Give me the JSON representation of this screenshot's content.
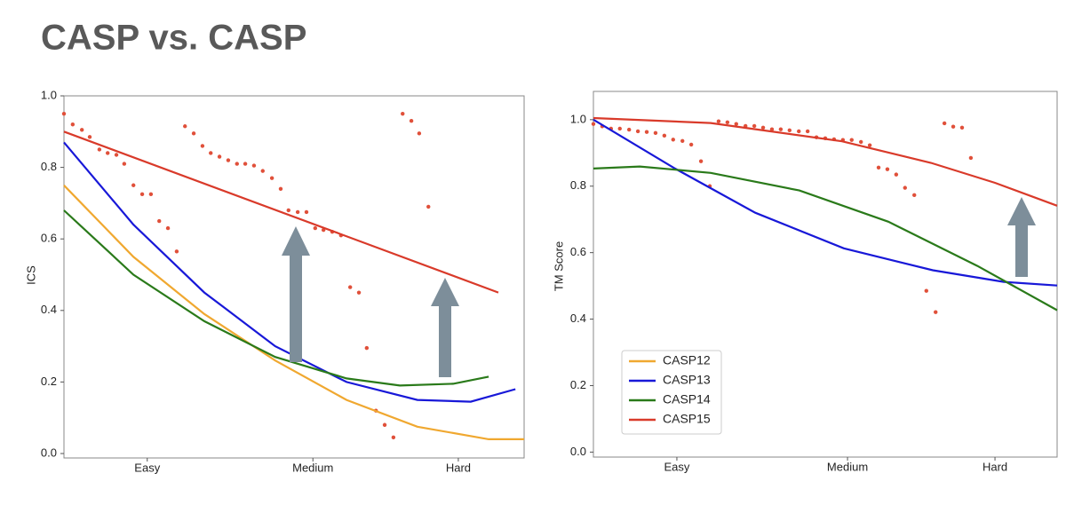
{
  "title": "CASP vs. CASP",
  "chart_data": [
    {
      "type": "line",
      "ylabel": "ICS",
      "xlim": [
        0,
        100
      ],
      "ylim": [
        0,
        1
      ],
      "xticks": [
        {
          "value": 18.1,
          "label": "Easy"
        },
        {
          "value": 54.1,
          "label": "Medium"
        },
        {
          "value": 85.7,
          "label": "Hard"
        }
      ],
      "yticks": [
        {
          "value": 0,
          "label": "0.0"
        },
        0.2,
        0.4,
        0.6,
        0.8,
        {
          "value": 1,
          "label": "1.0"
        }
      ],
      "series": [
        {
          "color": "#f0a830",
          "x": [
            0,
            15.1,
            30.5,
            45.9,
            61.4,
            76.8,
            92.3,
            100
          ],
          "values": [
            0.75,
            0.55,
            0.39,
            0.26,
            0.15,
            0.075,
            0.04,
            0.04
          ]
        },
        {
          "color": "#1818d8",
          "x": [
            0,
            15.1,
            30.5,
            45.9,
            61.4,
            76.8,
            88.4,
            98.1
          ],
          "values": [
            0.87,
            0.64,
            0.45,
            0.3,
            0.2,
            0.15,
            0.145,
            0.18
          ]
        },
        {
          "color": "#2a7a1a",
          "x": [
            0,
            15.1,
            30.5,
            45.9,
            61.4,
            73.0,
            84.6,
            92.3
          ],
          "values": [
            0.68,
            0.5,
            0.37,
            0.27,
            0.21,
            0.19,
            0.195,
            0.215
          ]
        },
        {
          "color": "#d93a2a",
          "x": [
            0,
            94.4
          ],
          "values": [
            0.9,
            0.45
          ]
        }
      ],
      "points": {
        "color": "#e0503a",
        "x": [
          0,
          1.9,
          3.9,
          5.6,
          7.7,
          9.5,
          11.4,
          13.1,
          15.1,
          17.0,
          18.9,
          20.7,
          22.6,
          24.5,
          26.3,
          28.2,
          30.1,
          31.9,
          33.8,
          35.7,
          37.6,
          39.4,
          41.3,
          43.2,
          45.2,
          47.1,
          48.8,
          50.8,
          52.7,
          54.6,
          56.4,
          58.3,
          60.2,
          62.2,
          64.1,
          65.8,
          67.8,
          69.7,
          71.6,
          73.6,
          75.5,
          77.2,
          79.2
        ],
        "values": [
          0.95,
          0.92,
          0.905,
          0.885,
          0.85,
          0.84,
          0.835,
          0.81,
          0.75,
          0.725,
          0.725,
          0.65,
          0.63,
          0.565,
          0.915,
          0.895,
          0.86,
          0.84,
          0.83,
          0.82,
          0.81,
          0.81,
          0.805,
          0.79,
          0.77,
          0.74,
          0.68,
          0.675,
          0.675,
          0.63,
          0.625,
          0.62,
          0.61,
          0.465,
          0.45,
          0.295,
          0.12,
          0.08,
          0.045,
          0.95,
          0.93,
          0.895,
          0.69
        ]
      }
    },
    {
      "type": "line",
      "ylabel": "TM Score",
      "xlim": [
        0,
        100
      ],
      "ylim": [
        -0.015,
        1.085
      ],
      "xticks": [
        {
          "value": 18.0,
          "label": "Easy"
        },
        {
          "value": 54.8,
          "label": "Medium"
        },
        {
          "value": 86.6,
          "label": "Hard"
        }
      ],
      "yticks": [
        {
          "value": 0,
          "label": "0.0"
        },
        0.2,
        0.4,
        0.6,
        0.8,
        {
          "value": 1,
          "label": "1.0"
        }
      ],
      "legend": "lower left",
      "series": [
        {
          "name": "CASP12",
          "color": "#f0a830",
          "x": [],
          "values": []
        },
        {
          "name": "CASP13",
          "color": "#1818d8",
          "x": [
            0,
            17.6,
            34.9,
            54.0,
            73.2,
            88.5,
            100
          ],
          "values": [
            1.0,
            0.853,
            0.72,
            0.613,
            0.547,
            0.512,
            0.501
          ]
        },
        {
          "name": "CASP14",
          "color": "#2a7a1a",
          "x": [
            0,
            10.0,
            25.3,
            44.4,
            63.6,
            82.8,
            100
          ],
          "values": [
            0.853,
            0.859,
            0.84,
            0.787,
            0.693,
            0.56,
            0.427
          ]
        },
        {
          "name": "CASP15",
          "color": "#d93a2a",
          "x": [
            0,
            25.3,
            53.6,
            72.8,
            86.6,
            100
          ],
          "values": [
            1.005,
            0.99,
            0.935,
            0.87,
            0.81,
            0.741
          ]
        }
      ],
      "points": {
        "color": "#e0503a",
        "x": [
          0,
          1.9,
          3.8,
          5.7,
          7.7,
          9.6,
          11.5,
          13.4,
          15.3,
          17.2,
          19.2,
          21.1,
          23.2,
          25.1,
          27.0,
          28.9,
          30.8,
          32.8,
          34.7,
          36.6,
          38.5,
          40.4,
          42.3,
          44.3,
          46.2,
          48.1,
          50.0,
          51.9,
          53.8,
          55.7,
          57.7,
          59.6,
          61.5,
          63.4,
          65.3,
          67.2,
          69.2,
          71.8,
          73.8,
          75.7,
          77.6,
          79.5,
          81.4
        ],
        "values": [
          0.987,
          0.98,
          0.973,
          0.973,
          0.97,
          0.965,
          0.963,
          0.96,
          0.952,
          0.94,
          0.936,
          0.925,
          0.875,
          0.8,
          0.995,
          0.992,
          0.987,
          0.981,
          0.981,
          0.976,
          0.971,
          0.971,
          0.968,
          0.965,
          0.965,
          0.947,
          0.944,
          0.941,
          0.939,
          0.939,
          0.933,
          0.923,
          0.856,
          0.851,
          0.835,
          0.795,
          0.773,
          0.485,
          0.421,
          0.989,
          0.979,
          0.976,
          0.885
        ]
      }
    }
  ]
}
